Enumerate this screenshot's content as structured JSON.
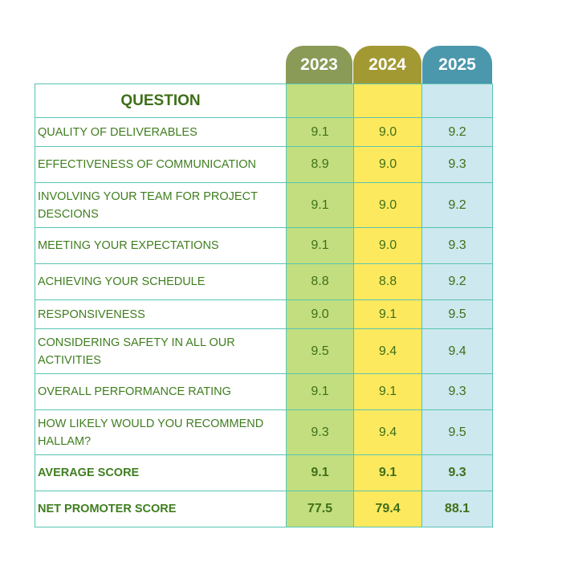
{
  "chart_data": {
    "type": "table",
    "header_label": "QUESTION",
    "years": [
      {
        "label": "2023",
        "tab_color": "#8a9a57",
        "column_color": "#c2de7f"
      },
      {
        "label": "2024",
        "tab_color": "#a39933",
        "column_color": "#fde95e"
      },
      {
        "label": "2025",
        "tab_color": "#4b97ab",
        "column_color": "#cde8ee"
      }
    ],
    "rows": [
      {
        "question": "QUALITY OF DELIVERABLES",
        "values": [
          "9.1",
          "9.0",
          "9.2"
        ]
      },
      {
        "question": "EFFECTIVENESS OF COMMUNICATION",
        "values": [
          "8.9",
          "9.0",
          "9.3"
        ]
      },
      {
        "question": "INVOLVING YOUR TEAM FOR PROJECT DESCIONS",
        "values": [
          "9.1",
          "9.0",
          "9.2"
        ]
      },
      {
        "question": "MEETING YOUR EXPECTATIONS",
        "values": [
          "9.1",
          "9.0",
          "9.3"
        ]
      },
      {
        "question": "ACHIEVING YOUR SCHEDULE",
        "values": [
          "8.8",
          "8.8",
          "9.2"
        ]
      },
      {
        "question": "RESPONSIVENESS",
        "values": [
          "9.0",
          "9.1",
          "9.5"
        ]
      },
      {
        "question": "CONSIDERING SAFETY IN ALL OUR ACTIVITIES",
        "values": [
          "9.5",
          "9.4",
          "9.4"
        ]
      },
      {
        "question": "OVERALL PERFORMANCE RATING",
        "values": [
          "9.1",
          "9.1",
          "9.3"
        ]
      },
      {
        "question": "HOW LIKELY WOULD YOU RECOMMEND HALLAM?",
        "values": [
          "9.3",
          "9.4",
          "9.5"
        ]
      }
    ],
    "totals": [
      {
        "question": "AVERAGE SCORE",
        "values": [
          "9.1",
          "9.1",
          "9.3"
        ]
      },
      {
        "question": "NET PROMOTER SCORE",
        "values": [
          "77.5",
          "79.4",
          "88.1"
        ]
      }
    ]
  }
}
